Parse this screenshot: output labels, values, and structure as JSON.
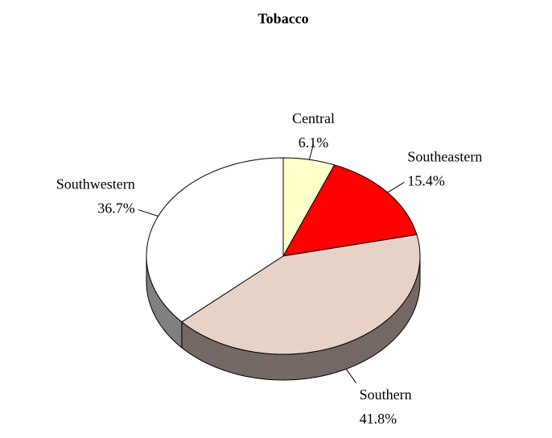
{
  "chart_data": {
    "type": "pie",
    "title": "Tobacco",
    "categories": [
      "Central",
      "Southeastern",
      "Southern",
      "Southwestern"
    ],
    "values": [
      6.1,
      15.4,
      41.8,
      36.7
    ],
    "value_labels": [
      "6.1%",
      "15.4%",
      "41.8%",
      "36.7%"
    ],
    "colors": [
      "#ffffcc",
      "#ff0000",
      "#e8d2c8",
      "#ffffff"
    ]
  }
}
